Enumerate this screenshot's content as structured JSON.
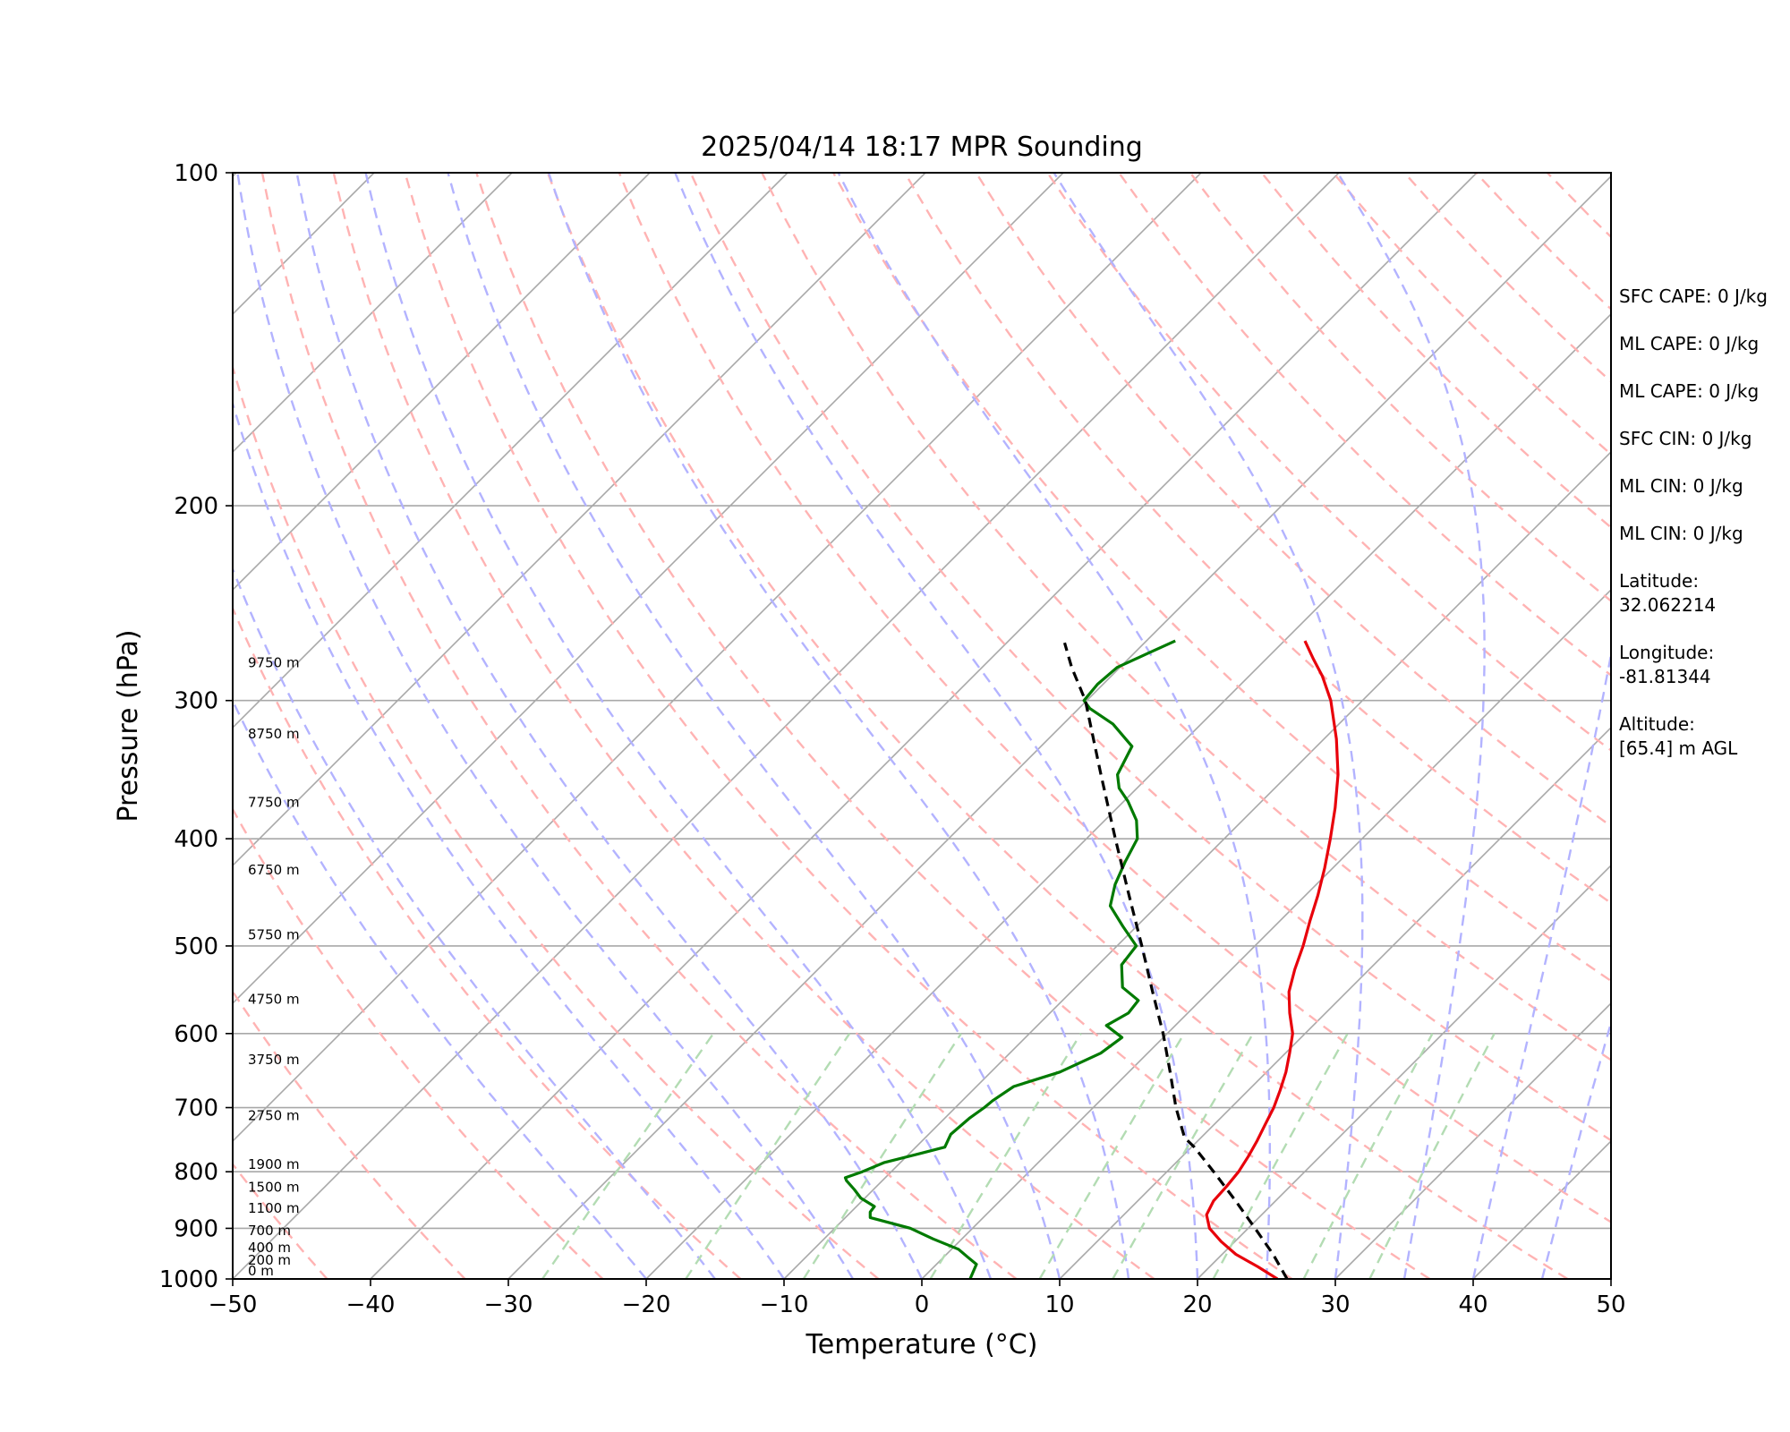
{
  "chart_data": {
    "type": "line",
    "title": "2025/04/14 18:17 MPR Sounding",
    "xlabel": "Temperature (°C)",
    "ylabel": "Pressure (hPa)",
    "xlim": [
      -50,
      50
    ],
    "ylim": [
      1000,
      100
    ],
    "y_scale": "log",
    "x_ticks": [
      -50,
      -40,
      -30,
      -20,
      -10,
      0,
      10,
      20,
      30,
      40,
      50
    ],
    "x_tick_labels": [
      "−50",
      "−40",
      "−30",
      "−20",
      "−10",
      "0",
      "10",
      "20",
      "30",
      "40",
      "50"
    ],
    "y_ticks": [
      1000,
      900,
      800,
      700,
      600,
      500,
      400,
      300,
      200,
      100
    ],
    "y_tick_labels": [
      "1000",
      "900",
      "800",
      "700",
      "600",
      "500",
      "400",
      "300",
      "200",
      "100"
    ],
    "grid": true,
    "series": [
      {
        "color": "#e8000b",
        "style": "solid",
        "points": [
          [
            1000,
            25.8
          ],
          [
            975,
            23.5
          ],
          [
            950,
            21.0
          ],
          [
            925,
            19.0
          ],
          [
            900,
            17.2
          ],
          [
            875,
            16.0
          ],
          [
            850,
            15.5
          ],
          [
            825,
            15.4
          ],
          [
            800,
            15.2
          ],
          [
            775,
            14.8
          ],
          [
            750,
            14.3
          ],
          [
            725,
            13.7
          ],
          [
            700,
            13.1
          ],
          [
            675,
            12.3
          ],
          [
            650,
            11.4
          ],
          [
            625,
            10.3
          ],
          [
            600,
            9.1
          ],
          [
            575,
            7.4
          ],
          [
            550,
            5.8
          ],
          [
            525,
            4.6
          ],
          [
            500,
            3.5
          ],
          [
            475,
            2.2
          ],
          [
            450,
            0.9
          ],
          [
            425,
            -0.6
          ],
          [
            400,
            -2.3
          ],
          [
            375,
            -4.2
          ],
          [
            350,
            -6.4
          ],
          [
            325,
            -9.1
          ],
          [
            300,
            -12.3
          ],
          [
            285,
            -14.7
          ],
          [
            275,
            -16.6
          ],
          [
            265,
            -18.5
          ]
        ]
      },
      {
        "color": "#007a00",
        "style": "solid",
        "points": [
          [
            1000,
            3.5
          ],
          [
            985,
            3.2
          ],
          [
            970,
            2.9
          ],
          [
            955,
            1.7
          ],
          [
            940,
            0.5
          ],
          [
            920,
            -2.1
          ],
          [
            900,
            -4.5
          ],
          [
            880,
            -8.2
          ],
          [
            870,
            -8.6
          ],
          [
            860,
            -8.7
          ],
          [
            845,
            -10.3
          ],
          [
            830,
            -11.4
          ],
          [
            815,
            -12.6
          ],
          [
            810,
            -12.9
          ],
          [
            800,
            -12.1
          ],
          [
            785,
            -11.2
          ],
          [
            770,
            -9.2
          ],
          [
            760,
            -7.9
          ],
          [
            740,
            -8.4
          ],
          [
            715,
            -8.2
          ],
          [
            700,
            -7.9
          ],
          [
            690,
            -7.8
          ],
          [
            670,
            -7.3
          ],
          [
            650,
            -5.0
          ],
          [
            625,
            -3.4
          ],
          [
            605,
            -3.0
          ],
          [
            590,
            -5.0
          ],
          [
            575,
            -4.3
          ],
          [
            560,
            -4.5
          ],
          [
            545,
            -6.6
          ],
          [
            520,
            -8.3
          ],
          [
            500,
            -8.6
          ],
          [
            480,
            -11.0
          ],
          [
            460,
            -13.4
          ],
          [
            440,
            -14.6
          ],
          [
            420,
            -15.5
          ],
          [
            400,
            -16.3
          ],
          [
            385,
            -17.7
          ],
          [
            370,
            -19.7
          ],
          [
            360,
            -21.3
          ],
          [
            350,
            -22.4
          ],
          [
            330,
            -23.4
          ],
          [
            315,
            -26.4
          ],
          [
            305,
            -29.2
          ],
          [
            300,
            -30.2
          ],
          [
            290,
            -30.4
          ],
          [
            280,
            -30.2
          ],
          [
            272,
            -29.0
          ],
          [
            265,
            -27.9
          ]
        ]
      },
      {
        "color": "#000000",
        "style": "dashed",
        "points": [
          [
            1000,
            26.5
          ],
          [
            950,
            23.7
          ],
          [
            900,
            20.5
          ],
          [
            850,
            17.1
          ],
          [
            800,
            13.4
          ],
          [
            760,
            10.2
          ],
          [
            745,
            8.8
          ],
          [
            700,
            6.0
          ],
          [
            650,
            3.0
          ],
          [
            600,
            -0.3
          ],
          [
            550,
            -4.1
          ],
          [
            500,
            -8.2
          ],
          [
            450,
            -12.8
          ],
          [
            400,
            -17.9
          ],
          [
            350,
            -23.6
          ],
          [
            300,
            -30.1
          ],
          [
            280,
            -33.5
          ],
          [
            266,
            -35.8
          ]
        ]
      }
    ],
    "height_labels": [
      {
        "p": 1000,
        "label": "0 m"
      },
      {
        "p": 978,
        "label": "200 m"
      },
      {
        "p": 953,
        "label": "400 m"
      },
      {
        "p": 920,
        "label": "700 m"
      },
      {
        "p": 878,
        "label": "1100 m"
      },
      {
        "p": 840,
        "label": "1500 m"
      },
      {
        "p": 801,
        "label": "1900 m"
      },
      {
        "p": 724,
        "label": "2750 m"
      },
      {
        "p": 644,
        "label": "3750 m"
      },
      {
        "p": 568,
        "label": "4750 m"
      },
      {
        "p": 497,
        "label": "5750 m"
      },
      {
        "p": 434,
        "label": "6750 m"
      },
      {
        "p": 377,
        "label": "7750 m"
      },
      {
        "p": 327,
        "label": "8750 m"
      },
      {
        "p": 282,
        "label": "9750 m"
      }
    ],
    "background_lines": {
      "isotherm_color": "#a8a8a8",
      "dry_adiabat_color": "#ffb3b3",
      "moist_adiabat_color": "#b3b3ff",
      "mixing_ratio_color": "#b3dcb3",
      "isobar_color": "#a8a8a8"
    }
  },
  "info_panel": {
    "sfc_cape": "SFC CAPE: 0 J/kg",
    "ml_cape_1": "ML CAPE: 0 J/kg",
    "ml_cape_2": "ML CAPE: 0 J/kg",
    "sfc_cin": "SFC CIN: 0 J/kg",
    "ml_cin_1": "ML CIN: 0 J/kg",
    "ml_cin_2": "ML CIN: 0 J/kg",
    "latitude_label": "Latitude:",
    "latitude_value": "32.062214",
    "longitude_label": "Longitude:",
    "longitude_value": "-81.81344",
    "altitude_label": "Altitude:",
    "altitude_value": "[65.4] m AGL"
  }
}
